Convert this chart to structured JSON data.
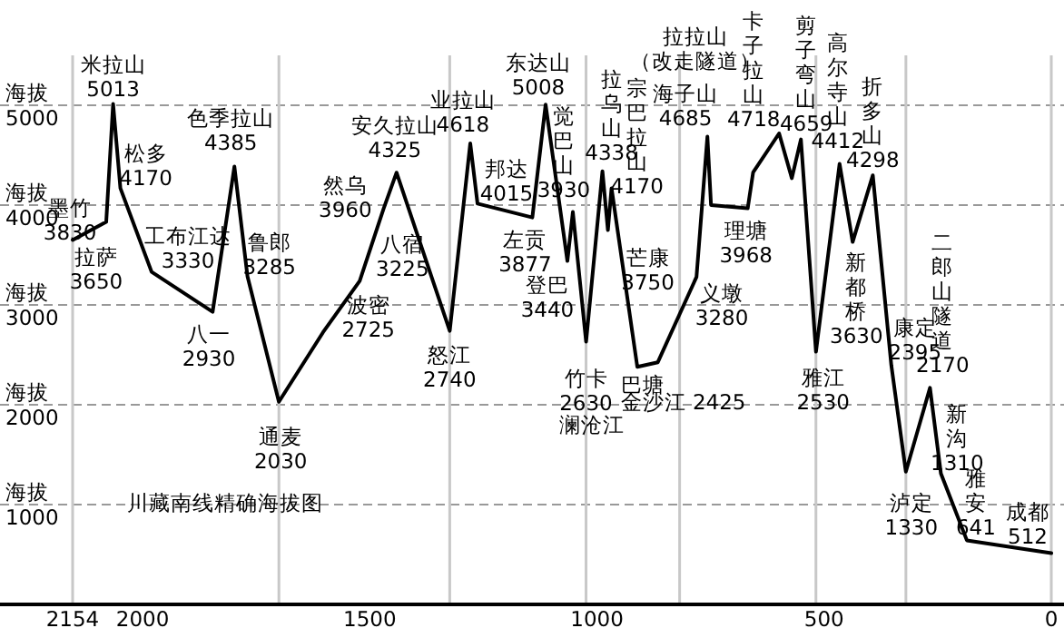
{
  "chart_data": {
    "type": "line",
    "xlim": [
      2154,
      0
    ],
    "ylim": [
      0,
      5500
    ],
    "xticks": [
      2154,
      2000,
      1500,
      1000,
      500,
      0
    ],
    "yticks": [
      1000,
      2000,
      3000,
      4000,
      5000
    ],
    "ylabel": "海拔",
    "grid": "y",
    "series": [
      {
        "color": "#000000",
        "x": [
          2154,
          2080,
          2065,
          2049,
          1980,
          1846,
          1798,
          1769,
          1700,
          1603,
          1522,
          1470,
          1441,
          1360,
          1324,
          1279,
          1263,
          1142,
          1113,
          1065,
          1053,
          1024,
          988,
          976,
          968,
          911,
          866,
          781,
          757,
          749,
          668,
          656,
          599,
          571,
          551,
          518,
          466,
          437,
          393,
          352,
          320,
          267,
          243,
          186,
          0
        ],
        "values": [
          3650,
          3830,
          5013,
          4170,
          3330,
          2930,
          4385,
          3285,
          2030,
          2725,
          3240,
          3960,
          4325,
          3225,
          2740,
          4618,
          4015,
          3877,
          5008,
          3440,
          3930,
          2630,
          4338,
          3750,
          4170,
          2380,
          2425,
          3280,
          4685,
          4000,
          3968,
          4330,
          4718,
          4270,
          4659,
          2530,
          4412,
          3630,
          4298,
          2395,
          1330,
          2170,
          1310,
          641,
          512
        ]
      }
    ],
    "ref_lines": [
      {
        "axis": "x",
        "value": 2154,
        "color": "#c8c8c8"
      },
      {
        "axis": "x",
        "value": 1700,
        "color": "#c8c8c8"
      },
      {
        "axis": "x",
        "value": 1324,
        "color": "#c8c8c8"
      },
      {
        "axis": "x",
        "value": 1024,
        "color": "#c8c8c8"
      },
      {
        "axis": "x",
        "value": 818,
        "color": "#c8c8c8"
      },
      {
        "axis": "x",
        "value": 518,
        "color": "#c8c8c8"
      },
      {
        "axis": "x",
        "value": 320,
        "color": "#c8c8c8"
      },
      {
        "axis": "x",
        "value": 0,
        "color": "#c8c8c8"
      }
    ],
    "annotations": [
      {
        "text": "拉萨\n3650",
        "x": 2154,
        "y": 3650
      },
      {
        "text": "墨竹\n3830",
        "x": 2080,
        "y": 3830
      },
      {
        "text": "米拉山\n5013",
        "x": 2065,
        "y": 5013
      },
      {
        "text": "松多\n4170",
        "x": 2049,
        "y": 4170
      },
      {
        "text": "工布江达\n3330",
        "x": 1980,
        "y": 3330
      },
      {
        "text": "八一\n2930",
        "x": 1846,
        "y": 2930
      },
      {
        "text": "色季拉山\n4385",
        "x": 1798,
        "y": 4385
      },
      {
        "text": "鲁郎\n3285",
        "x": 1769,
        "y": 3285
      },
      {
        "text": "通麦\n2030",
        "x": 1700,
        "y": 2030
      },
      {
        "text": "波密\n2725",
        "x": 1603,
        "y": 2725
      },
      {
        "text": "然乌\n3960",
        "x": 1470,
        "y": 3960
      },
      {
        "text": "安久拉山\n4325",
        "x": 1441,
        "y": 4325
      },
      {
        "text": "八宿\n3225",
        "x": 1360,
        "y": 3225
      },
      {
        "text": "怒江\n2740",
        "x": 1324,
        "y": 2740
      },
      {
        "text": "业拉山\n4618",
        "x": 1279,
        "y": 4618
      },
      {
        "text": "邦达\n4015",
        "x": 1263,
        "y": 4015
      },
      {
        "text": "左贡\n3877",
        "x": 1142,
        "y": 3877
      },
      {
        "text": "东达山\n5008",
        "x": 1113,
        "y": 5008
      },
      {
        "text": "登巴\n3440",
        "x": 1065,
        "y": 3440
      },
      {
        "text": "觉巴山\n3930",
        "x": 1053,
        "y": 3930
      },
      {
        "text": "竹卡\n2630",
        "x": 1024,
        "y": 2630
      },
      "澜沧江",
      {
        "text": "拉乌山\n4338",
        "x": 988,
        "y": 4338
      },
      {
        "text": "芒康\n3750",
        "x": 976,
        "y": 3750
      },
      {
        "text": "宗巴拉山\n4170",
        "x": 968,
        "y": 4170
      },
      "拉拉山（改走隧道）",
      {
        "text": "巴塘",
        "x": 911,
        "y": 2380
      },
      {
        "text": "金沙江 2425",
        "x": 866,
        "y": 2425
      },
      {
        "text": "义墩\n3280",
        "x": 781,
        "y": 3280
      },
      {
        "text": "海子山\n4685",
        "x": 757,
        "y": 4685
      },
      {
        "text": "理塘\n3968",
        "x": 668,
        "y": 3968
      },
      {
        "text": "卡子拉山\n4718",
        "x": 599,
        "y": 4718
      },
      {
        "text": "剪子弯山\n4659",
        "x": 551,
        "y": 4659
      },
      {
        "text": "雅江\n2530",
        "x": 518,
        "y": 2530
      },
      {
        "text": "高尔寺山\n4412",
        "x": 466,
        "y": 4412
      },
      {
        "text": "新都桥\n3630",
        "x": 437,
        "y": 3630
      },
      {
        "text": "折多山\n4298",
        "x": 393,
        "y": 4298
      },
      {
        "text": "康定\n2395",
        "x": 352,
        "y": 2395
      },
      {
        "text": "泸定\n1330",
        "x": 320,
        "y": 1330
      },
      {
        "text": "二郎山隧道\n2170",
        "x": 267,
        "y": 2170
      },
      {
        "text": "新沟\n1310",
        "x": 243,
        "y": 1310
      },
      {
        "text": "雅安\n641",
        "x": 186,
        "y": 641
      },
      {
        "text": "成都\n512",
        "x": 0,
        "y": 512
      },
      "川藏南线精确海拔图"
    ]
  }
}
